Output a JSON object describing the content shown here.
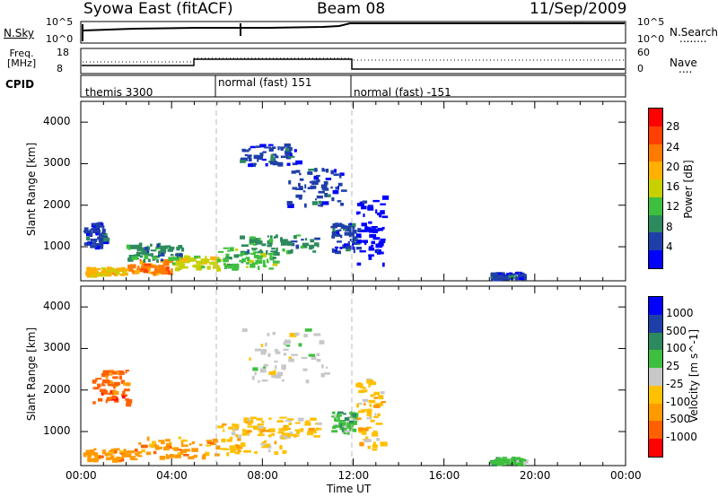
{
  "header": {
    "station": "Syowa East (fitACF)",
    "beam": "Beam 08",
    "date": "11/Sep/2009"
  },
  "top_panel": {
    "left_label": "N.Sky",
    "left_ticks": [
      "10^5",
      "10^0"
    ],
    "right_ticks": [
      "10^5",
      "10^0"
    ],
    "right_label": "N.Search",
    "right_dots": "........"
  },
  "freq_panel": {
    "left_label": "Freq.\n[MHz]",
    "left_ticks": [
      "18",
      "8"
    ],
    "right_ticks": [
      "60",
      "0"
    ],
    "right_label": "Nave",
    "right_dots": "...."
  },
  "cpid": {
    "label": "CPID",
    "modes": [
      "themis 3300",
      "normal (fast) 151",
      "normal (fast) -151"
    ]
  },
  "colors": {
    "power_scale": [
      "#0000ff",
      "#1f3fa8",
      "#2c8a5e",
      "#3fbf3f",
      "#c8d000",
      "#ffb000",
      "#ff7a00",
      "#ff4000",
      "#ff0000"
    ],
    "velocity_scale": [
      "#ff0000",
      "#ff6000",
      "#ff9a00",
      "#ffc000",
      "#c8c8c8",
      "#3fbf3f",
      "#2c8a5e",
      "#1f3fa8",
      "#0000ff"
    ]
  },
  "chart_data": [
    {
      "type": "heatmap",
      "name_printed": "",
      "xlabel": "",
      "ylabel": "Slant Range [km]",
      "x_ticks": [
        "00:00",
        "04:00",
        "08:00",
        "12:00",
        "16:00",
        "20:00",
        "00:00"
      ],
      "y_ticks": [
        "1000",
        "2000",
        "3000",
        "4000"
      ],
      "colorbar_label": "Power [dB]",
      "colorbar_ticks": [
        "4",
        "8",
        "12",
        "16",
        "20",
        "24",
        "28"
      ],
      "xlim_hours": [
        0,
        24
      ],
      "ylim_km": [
        180,
        4500
      ],
      "patches": [
        {
          "t0": 0.1,
          "t1": 2.0,
          "r0": 350,
          "r1": 520,
          "c": 5
        },
        {
          "t0": 2.0,
          "t1": 4.0,
          "r0": 400,
          "r1": 700,
          "c": 6
        },
        {
          "t0": 4.0,
          "t1": 6.0,
          "r0": 500,
          "r1": 800,
          "c": 4
        },
        {
          "t0": 6.0,
          "t1": 8.5,
          "r0": 500,
          "r1": 1000,
          "c": 3
        },
        {
          "t0": 7.0,
          "t1": 10.5,
          "r0": 900,
          "r1": 1300,
          "c": 2
        },
        {
          "t0": 7.0,
          "t1": 9.5,
          "r0": 3000,
          "r1": 3500,
          "c": 1
        },
        {
          "t0": 9.0,
          "t1": 11.5,
          "r0": 2000,
          "r1": 2900,
          "c": 1
        },
        {
          "t0": 11.0,
          "t1": 12.2,
          "r0": 900,
          "r1": 1600,
          "c": 1
        },
        {
          "t0": 12.1,
          "t1": 13.3,
          "r0": 600,
          "r1": 2300,
          "c": 0
        },
        {
          "t0": 18.0,
          "t1": 19.5,
          "r0": 250,
          "r1": 400,
          "c": 1
        },
        {
          "t0": 0.1,
          "t1": 1.0,
          "r0": 1000,
          "r1": 1600,
          "c": 1
        },
        {
          "t0": 2.0,
          "t1": 4.5,
          "r0": 700,
          "r1": 1100,
          "c": 2
        }
      ]
    },
    {
      "type": "heatmap",
      "xlabel": "Time UT",
      "ylabel": "Slant Range [km]",
      "x_ticks": [
        "00:00",
        "04:00",
        "08:00",
        "12:00",
        "16:00",
        "20:00",
        "00:00"
      ],
      "y_ticks": [
        "1000",
        "2000",
        "3000",
        "4000"
      ],
      "colorbar_label": "Velocity [m s^-1]",
      "colorbar_ticks": [
        "1000",
        "500",
        "100",
        "25",
        "-25",
        "-100",
        "-500",
        "-1000"
      ],
      "xlim_hours": [
        0,
        24
      ],
      "ylim_km": [
        180,
        4500
      ],
      "patches": [
        {
          "t0": 0.1,
          "t1": 2.5,
          "r0": 350,
          "r1": 600,
          "c": 2
        },
        {
          "t0": 2.5,
          "t1": 6.0,
          "r0": 400,
          "r1": 900,
          "c": 2
        },
        {
          "t0": 6.0,
          "t1": 9.0,
          "r0": 500,
          "r1": 1200,
          "c": 3
        },
        {
          "t0": 7.0,
          "t1": 10.5,
          "r0": 900,
          "r1": 1400,
          "c": 3
        },
        {
          "t0": 7.0,
          "t1": 11.0,
          "r0": 2200,
          "r1": 3500,
          "c": 4
        },
        {
          "t0": 11.0,
          "t1": 12.0,
          "r0": 1000,
          "r1": 1500,
          "c": 5
        },
        {
          "t0": 12.1,
          "t1": 13.3,
          "r0": 600,
          "r1": 2300,
          "c": 3
        },
        {
          "t0": 18.0,
          "t1": 19.5,
          "r0": 250,
          "r1": 400,
          "c": 5
        },
        {
          "t0": 0.5,
          "t1": 2.0,
          "r0": 1700,
          "r1": 2500,
          "c": 1
        }
      ]
    }
  ]
}
